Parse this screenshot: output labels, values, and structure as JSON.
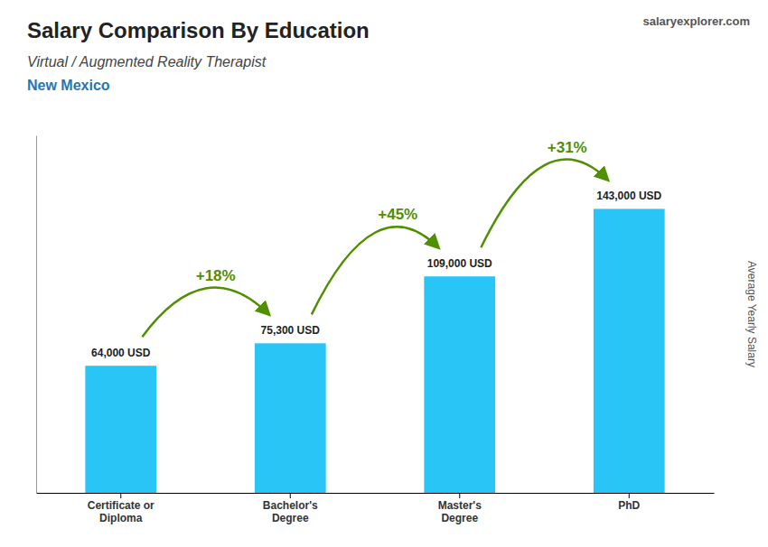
{
  "chart_data": {
    "type": "bar",
    "title": "Salary Comparison By Education",
    "subtitle": [
      "Virtual / Augmented Reality Therapist",
      "New Mexico"
    ],
    "source": "salaryexplorer.com",
    "ylabel": "Average Yearly Salary",
    "categories": [
      "Certificate or\nDiploma",
      "Bachelor's\nDegree",
      "Master's\nDegree",
      "PhD"
    ],
    "values": [
      64000,
      75300,
      109000,
      143000
    ],
    "value_labels": [
      "64,000 USD",
      "75,300 USD",
      "109,000 USD",
      "143,000 USD"
    ],
    "annotations": [
      "+18%",
      "+45%",
      "+31%"
    ],
    "color": "#29c5f6",
    "ylim": [
      0,
      180000
    ],
    "data_labels": true,
    "tick_labels": "x"
  }
}
